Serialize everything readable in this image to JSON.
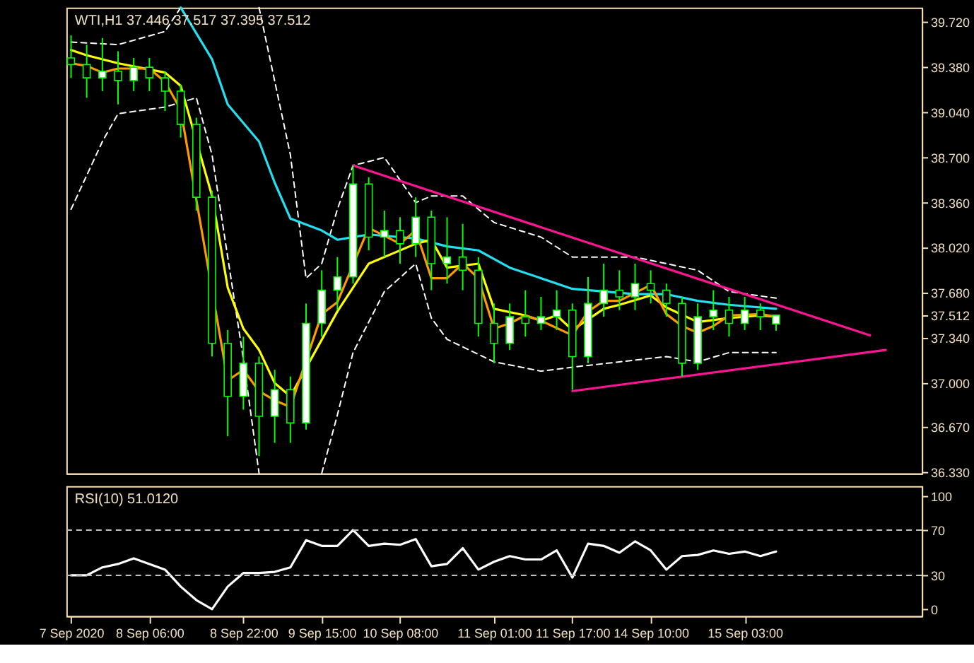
{
  "chart_data": [
    {
      "type": "candlestick",
      "ylim": [
        36.32,
        39.83
      ],
      "tick_labels": "y",
      "categories": [
        null,
        null,
        null,
        null,
        null,
        null,
        null,
        null,
        null,
        null,
        null,
        null,
        null,
        null,
        null,
        null,
        null,
        null,
        null,
        null,
        null,
        null,
        null,
        null,
        null,
        null,
        null,
        null,
        null,
        null,
        null,
        null,
        null,
        null,
        null,
        null,
        null,
        null,
        null,
        null,
        null,
        null,
        null,
        null,
        null,
        null,
        null,
        null,
        null,
        null,
        null,
        null,
        null,
        null,
        null
      ],
      "yticks": [
        {
          "value": 39.72,
          "label": "39.720"
        },
        {
          "value": 39.38,
          "label": "39.380"
        },
        {
          "value": 39.04,
          "label": "39.040"
        },
        {
          "value": 38.7,
          "label": "38.700"
        },
        {
          "value": 38.36,
          "label": "38.360"
        },
        {
          "value": 38.02,
          "label": "38.020"
        },
        {
          "value": 37.68,
          "label": "37.680"
        },
        {
          "value": 37.512,
          "label": "37.512"
        },
        {
          "value": 37.34,
          "label": "37.340"
        },
        {
          "value": 37.0,
          "label": "37.000"
        },
        {
          "value": 36.67,
          "label": "36.670"
        },
        {
          "value": 36.33,
          "label": "36.330"
        }
      ],
      "annotations": [
        "WTI,H1  37.446 37.517 37.395 37.512"
      ],
      "series": [
        {
          "type": "candlestick",
          "color": "#00ff00",
          "ohlc": [
            [
              39.45,
              39.62,
              39.3,
              39.4
            ],
            [
              39.4,
              39.55,
              39.15,
              39.3
            ],
            [
              39.3,
              39.6,
              39.2,
              39.35
            ],
            [
              39.35,
              39.5,
              39.1,
              39.28
            ],
            [
              39.28,
              39.45,
              39.2,
              39.38
            ],
            [
              39.38,
              39.45,
              39.2,
              39.3
            ],
            [
              39.3,
              39.35,
              39.05,
              39.2
            ],
            [
              39.2,
              39.25,
              38.85,
              38.95
            ],
            [
              38.95,
              39.0,
              38.3,
              38.4
            ],
            [
              38.4,
              38.45,
              37.2,
              37.3
            ],
            [
              37.3,
              37.4,
              36.6,
              36.9
            ],
            [
              36.9,
              37.35,
              36.8,
              37.15
            ],
            [
              37.15,
              37.2,
              36.45,
              36.75
            ],
            [
              36.75,
              37.1,
              36.55,
              36.95
            ],
            [
              36.95,
              37.05,
              36.55,
              36.7
            ],
            [
              36.7,
              37.6,
              36.65,
              37.45
            ],
            [
              37.45,
              37.85,
              37.35,
              37.7
            ],
            [
              37.7,
              37.95,
              37.55,
              37.8
            ],
            [
              37.8,
              38.64,
              37.75,
              38.5
            ],
            [
              38.5,
              38.55,
              38.0,
              38.1
            ],
            [
              38.1,
              38.3,
              37.95,
              38.15
            ],
            [
              38.15,
              38.25,
              37.9,
              38.05
            ],
            [
              38.05,
              38.4,
              37.95,
              38.25
            ],
            [
              38.25,
              38.3,
              37.7,
              37.9
            ],
            [
              37.9,
              38.25,
              37.75,
              37.95
            ],
            [
              37.95,
              38.2,
              37.7,
              37.85
            ],
            [
              37.85,
              37.95,
              37.35,
              37.45
            ],
            [
              37.45,
              37.6,
              37.15,
              37.3
            ],
            [
              37.3,
              37.6,
              37.25,
              37.5
            ],
            [
              37.5,
              37.7,
              37.35,
              37.45
            ],
            [
              37.45,
              37.65,
              37.4,
              37.5
            ],
            [
              37.5,
              37.7,
              37.4,
              37.55
            ],
            [
              37.55,
              37.6,
              36.95,
              37.2
            ],
            [
              37.2,
              37.8,
              37.15,
              37.6
            ],
            [
              37.6,
              37.9,
              37.5,
              37.7
            ],
            [
              37.7,
              37.85,
              37.55,
              37.65
            ],
            [
              37.65,
              37.9,
              37.55,
              37.75
            ],
            [
              37.75,
              37.85,
              37.6,
              37.7
            ],
            [
              37.7,
              37.75,
              37.5,
              37.6
            ],
            [
              37.6,
              37.65,
              37.05,
              37.15
            ],
            [
              37.15,
              37.6,
              37.1,
              37.5
            ],
            [
              37.5,
              37.7,
              37.4,
              37.55
            ],
            [
              37.55,
              37.65,
              37.35,
              37.45
            ],
            [
              37.45,
              37.65,
              37.4,
              37.55
            ],
            [
              37.55,
              37.6,
              37.4,
              37.5
            ],
            [
              37.446,
              37.517,
              37.395,
              37.512
            ],
            null,
            null,
            null,
            null,
            null,
            null,
            null,
            null,
            null
          ],
          "colors": [
            "#000000",
            "#000000",
            "#ffffff",
            "#000000",
            "#ffffff",
            "#000000",
            "#000000",
            "#000000",
            "#000000",
            "#000000",
            "#000000",
            "#ffffff",
            "#000000",
            "#ffffff",
            "#000000",
            "#ffffff",
            "#ffffff",
            "#ffffff",
            "#ffffff",
            "#000000",
            "#ffffff",
            "#000000",
            "#ffffff",
            "#000000",
            "#ffffff",
            "#000000",
            "#000000",
            "#000000",
            "#ffffff",
            "#000000",
            "#ffffff",
            "#ffffff",
            "#000000",
            "#ffffff",
            "#ffffff",
            "#000000",
            "#ffffff",
            "#000000",
            "#000000",
            "#000000",
            "#ffffff",
            "#ffffff",
            "#000000",
            "#ffffff",
            "#000000",
            "#ffffff",
            null,
            null,
            null,
            null,
            null,
            null,
            null,
            null,
            null
          ]
        },
        {
          "type": "line",
          "color": "#ffffff",
          "line_style": "dashed",
          "values": [
            39.57,
            null,
            null,
            39.55,
            null,
            null,
            39.65,
            39.83,
            null,
            null,
            null,
            null,
            null,
            null,
            null,
            null,
            null,
            null,
            null,
            null,
            null,
            null,
            null,
            null,
            null,
            null,
            null,
            null,
            null,
            null,
            null,
            null,
            null,
            null,
            null,
            null,
            null,
            null,
            null,
            null,
            null,
            null,
            null,
            null,
            null,
            null,
            null,
            null,
            null,
            null,
            null,
            null,
            null,
            null,
            null
          ]
        },
        {
          "type": "line",
          "color": "#ffffff",
          "line_style": "dashed",
          "values": [
            null,
            null,
            null,
            null,
            null,
            null,
            null,
            null,
            null,
            null,
            null,
            null,
            39.83,
            null,
            38.72,
            37.79,
            37.9,
            38.31,
            38.64,
            null,
            38.7,
            null,
            38.36,
            38.41,
            null,
            38.41,
            null,
            38.21,
            null,
            null,
            38.1,
            null,
            37.95,
            null,
            null,
            null,
            37.95,
            null,
            null,
            null,
            37.85,
            null,
            37.69,
            null,
            null,
            37.64,
            null,
            null,
            null,
            null,
            null,
            null,
            null,
            null,
            null
          ]
        },
        {
          "type": "line",
          "color": "#ffffff",
          "line_style": "dashed",
          "values": [
            38.31,
            null,
            38.82,
            39.03,
            null,
            null,
            39.08,
            null,
            39.15,
            38.72,
            null,
            37.18,
            36.32,
            null,
            null,
            null,
            null,
            null,
            null,
            null,
            null,
            null,
            null,
            null,
            null,
            null,
            null,
            null,
            null,
            null,
            null,
            null,
            null,
            null,
            null,
            null,
            null,
            null,
            null,
            null,
            null,
            null,
            null,
            null,
            null,
            null,
            null,
            null,
            null,
            null,
            null,
            null,
            null,
            null,
            null
          ]
        },
        {
          "type": "line",
          "color": "#ffffff",
          "line_style": "dashed",
          "values": [
            null,
            null,
            null,
            null,
            null,
            null,
            null,
            null,
            null,
            null,
            null,
            null,
            null,
            null,
            null,
            null,
            36.32,
            36.76,
            37.23,
            null,
            37.69,
            null,
            37.9,
            37.49,
            37.33,
            null,
            null,
            37.16,
            null,
            null,
            37.09,
            null,
            37.12,
            null,
            null,
            37.16,
            null,
            null,
            37.2,
            null,
            37.16,
            null,
            37.23,
            null,
            null,
            37.23,
            null,
            null,
            null,
            null,
            null,
            null,
            null,
            null,
            null
          ]
        },
        {
          "type": "line",
          "color": "#22e0f0",
          "values": [
            null,
            null,
            null,
            null,
            null,
            null,
            null,
            39.83,
            null,
            39.44,
            39.1,
            null,
            38.82,
            38.51,
            38.24,
            null,
            38.15,
            38.08,
            null,
            38.12,
            null,
            null,
            38.09,
            null,
            38.03,
            null,
            38.0,
            null,
            37.87,
            null,
            null,
            null,
            37.71,
            null,
            null,
            null,
            37.67,
            null,
            37.67,
            null,
            37.62,
            null,
            37.59,
            null,
            null,
            37.56,
            null,
            null,
            null,
            null,
            null,
            null,
            null,
            null,
            null
          ]
        },
        {
          "type": "line",
          "color": "#ffff00",
          "values": [
            39.51,
            39.47,
            null,
            39.41,
            null,
            null,
            39.34,
            39.24,
            null,
            38.41,
            37.72,
            37.41,
            37.25,
            37.0,
            36.9,
            null,
            null,
            37.54,
            null,
            37.9,
            null,
            null,
            38.05,
            38.08,
            37.87,
            null,
            37.9,
            37.56,
            null,
            37.51,
            37.47,
            37.51,
            37.4,
            null,
            37.56,
            37.59,
            null,
            37.66,
            37.57,
            null,
            37.46,
            null,
            37.49,
            null,
            37.51,
            37.5,
            null,
            null,
            null,
            null,
            null,
            null,
            null,
            null,
            null
          ]
        },
        {
          "type": "line",
          "color": "#ff9900",
          "values": [
            39.41,
            39.39,
            39.34,
            39.37,
            null,
            39.37,
            39.27,
            39.06,
            null,
            null,
            37.02,
            37.1,
            36.94,
            36.87,
            36.82,
            null,
            37.52,
            37.61,
            null,
            38.17,
            null,
            38.05,
            38.15,
            37.79,
            37.79,
            37.9,
            37.79,
            37.41,
            37.45,
            37.51,
            37.47,
            null,
            37.36,
            37.54,
            37.62,
            37.62,
            null,
            37.74,
            37.52,
            37.43,
            37.38,
            37.43,
            37.51,
            null,
            37.52,
            37.5,
            null,
            null,
            null,
            null,
            null,
            null,
            null,
            null,
            null
          ]
        },
        {
          "type": "line",
          "color": "#ff1493",
          "values": [
            null,
            null,
            null,
            null,
            null,
            null,
            null,
            null,
            null,
            null,
            null,
            null,
            null,
            null,
            null,
            null,
            null,
            null,
            38.64,
            null,
            null,
            null,
            null,
            null,
            null,
            null,
            null,
            null,
            null,
            null,
            null,
            null,
            null,
            null,
            null,
            null,
            null,
            null,
            null,
            null,
            null,
            null,
            null,
            null,
            null,
            null,
            null,
            null,
            null,
            null,
            null,
            37.36,
            null,
            null,
            null
          ]
        },
        {
          "type": "line",
          "color": "#ff1493",
          "values": [
            null,
            null,
            null,
            null,
            null,
            null,
            null,
            null,
            null,
            null,
            null,
            null,
            null,
            null,
            null,
            null,
            null,
            null,
            null,
            null,
            null,
            null,
            null,
            null,
            null,
            null,
            null,
            null,
            null,
            null,
            null,
            null,
            36.94,
            null,
            null,
            null,
            null,
            null,
            null,
            null,
            null,
            null,
            null,
            null,
            null,
            null,
            null,
            null,
            null,
            null,
            null,
            null,
            37.25,
            null,
            null
          ]
        }
      ]
    },
    {
      "type": "line",
      "ylim": [
        -6,
        109
      ],
      "yticks": [
        0,
        30,
        70,
        100
      ],
      "categories": [
        "7 Sep 2020",
        null,
        null,
        null,
        null,
        "8 Sep 06:00",
        null,
        null,
        null,
        null,
        null,
        "8 Sep 22:00",
        null,
        null,
        null,
        null,
        "9 Sep 15:00",
        null,
        null,
        null,
        null,
        "10 Sep 08:00",
        null,
        null,
        null,
        null,
        null,
        "11 Sep 01:00",
        null,
        null,
        null,
        null,
        "11 Sep 17:00",
        null,
        null,
        null,
        null,
        "14 Sep 10:00",
        null,
        null,
        null,
        null,
        null,
        "15 Sep 03:00",
        null,
        null,
        null,
        null,
        null,
        null,
        null,
        null,
        null,
        null,
        null
      ],
      "annotations": [
        "RSI(10) 51.0120"
      ],
      "ref_lines": [
        {
          "axis": "y",
          "value": 70,
          "color": "#c0c0c0",
          "line_style": "dashed"
        },
        {
          "axis": "y",
          "value": 30,
          "color": "#c0c0c0",
          "line_style": "dashed"
        }
      ],
      "series": [
        {
          "color": "#ffffff",
          "values": [
            30,
            30,
            37,
            40,
            45,
            40,
            35,
            20,
            8,
            0,
            20,
            32,
            32,
            33,
            37,
            61,
            56,
            56,
            70,
            56,
            58,
            57,
            62,
            38,
            40,
            54,
            35,
            42,
            47,
            44,
            44,
            52,
            28,
            58,
            56,
            50,
            60,
            52,
            35,
            47,
            48,
            52,
            49,
            51,
            47,
            51,
            null,
            null,
            null,
            null,
            null,
            null,
            null,
            null,
            null
          ]
        }
      ]
    }
  ]
}
